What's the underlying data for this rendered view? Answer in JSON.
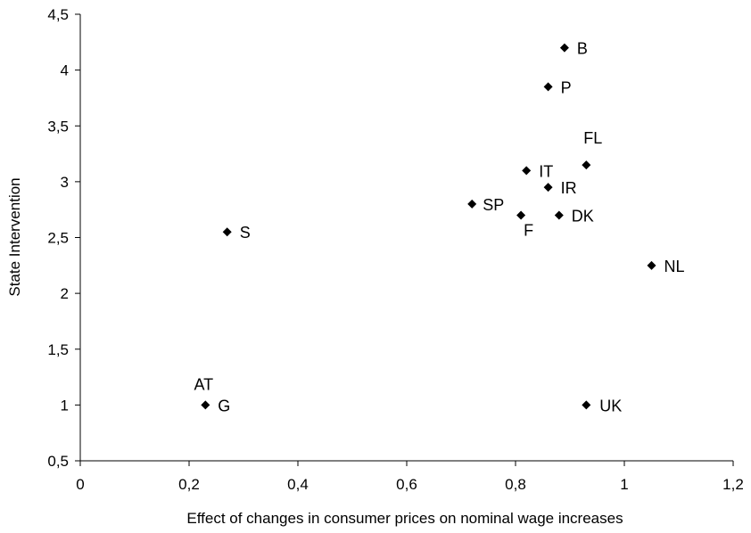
{
  "chart_data": {
    "type": "scatter",
    "title": "",
    "xlabel": "Effect of changes in consumer prices on nominal wage increases",
    "ylabel": "State Intervention",
    "xlim": [
      0,
      1.2
    ],
    "ylim": [
      0.5,
      4.5
    ],
    "x_ticks": [
      0,
      0.2,
      0.4,
      0.6,
      0.8,
      1,
      1.2
    ],
    "y_ticks": [
      0.5,
      1,
      1.5,
      2,
      2.5,
      3,
      3.5,
      4,
      4.5
    ],
    "x_tick_labels": [
      "0",
      "0,2",
      "0,4",
      "0,6",
      "0,8",
      "1",
      "1,2"
    ],
    "y_tick_labels": [
      "0,5",
      "1",
      "1,5",
      "2",
      "2,5",
      "3",
      "3,5",
      "4",
      "4,5"
    ],
    "grid": false,
    "legend": "none",
    "marker": "diamond",
    "marker_color": "#000000",
    "points": [
      {
        "label": "B",
        "x": 0.89,
        "y": 4.2
      },
      {
        "label": "P",
        "x": 0.86,
        "y": 3.85
      },
      {
        "label": "FL",
        "x": 0.93,
        "y": 3.15
      },
      {
        "label": "IT",
        "x": 0.82,
        "y": 3.1
      },
      {
        "label": "IR",
        "x": 0.86,
        "y": 2.95
      },
      {
        "label": "SP",
        "x": 0.72,
        "y": 2.8
      },
      {
        "label": "F",
        "x": 0.81,
        "y": 2.7
      },
      {
        "label": "DK",
        "x": 0.88,
        "y": 2.7
      },
      {
        "label": "S",
        "x": 0.27,
        "y": 2.55
      },
      {
        "label": "NL",
        "x": 1.05,
        "y": 2.25
      },
      {
        "label": "AT",
        "x": 0.23,
        "y": 1.0
      },
      {
        "label": "G",
        "x": 0.23,
        "y": 1.0
      },
      {
        "label": "UK",
        "x": 0.93,
        "y": 1.0
      }
    ]
  }
}
